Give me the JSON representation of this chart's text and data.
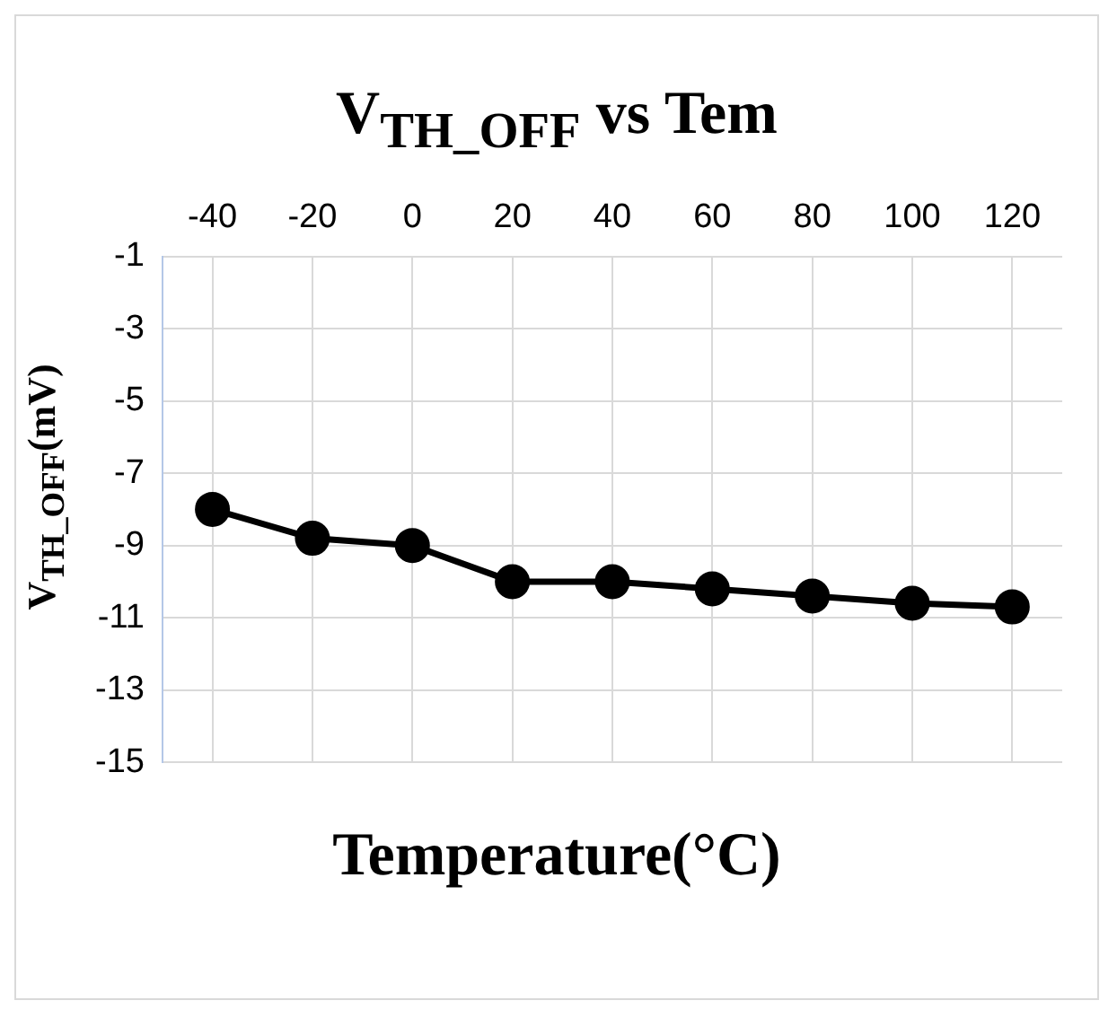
{
  "chart_data": {
    "type": "line",
    "title": "V$_{TH_OFF}$ vs Tem",
    "xlabel": "Temperature(°C)",
    "ylabel": "V$_{TH_OFF}$(mV)",
    "categories": [
      "-40",
      "-20",
      "0",
      "20",
      "40",
      "60",
      "80",
      "100",
      "120"
    ],
    "series": [
      {
        "color": "#000000",
        "values": [
          -8,
          -8.8,
          -9,
          -10,
          -10,
          -10.2,
          -10.4,
          -10.6,
          -10.7
        ]
      }
    ],
    "ylim": [
      -15,
      -1
    ],
    "yticks": [
      -15,
      -13,
      -11,
      -9,
      -7,
      -5,
      -3,
      -1
    ],
    "grid": true,
    "marker": "circle",
    "line_style": "solid",
    "legend": false
  }
}
